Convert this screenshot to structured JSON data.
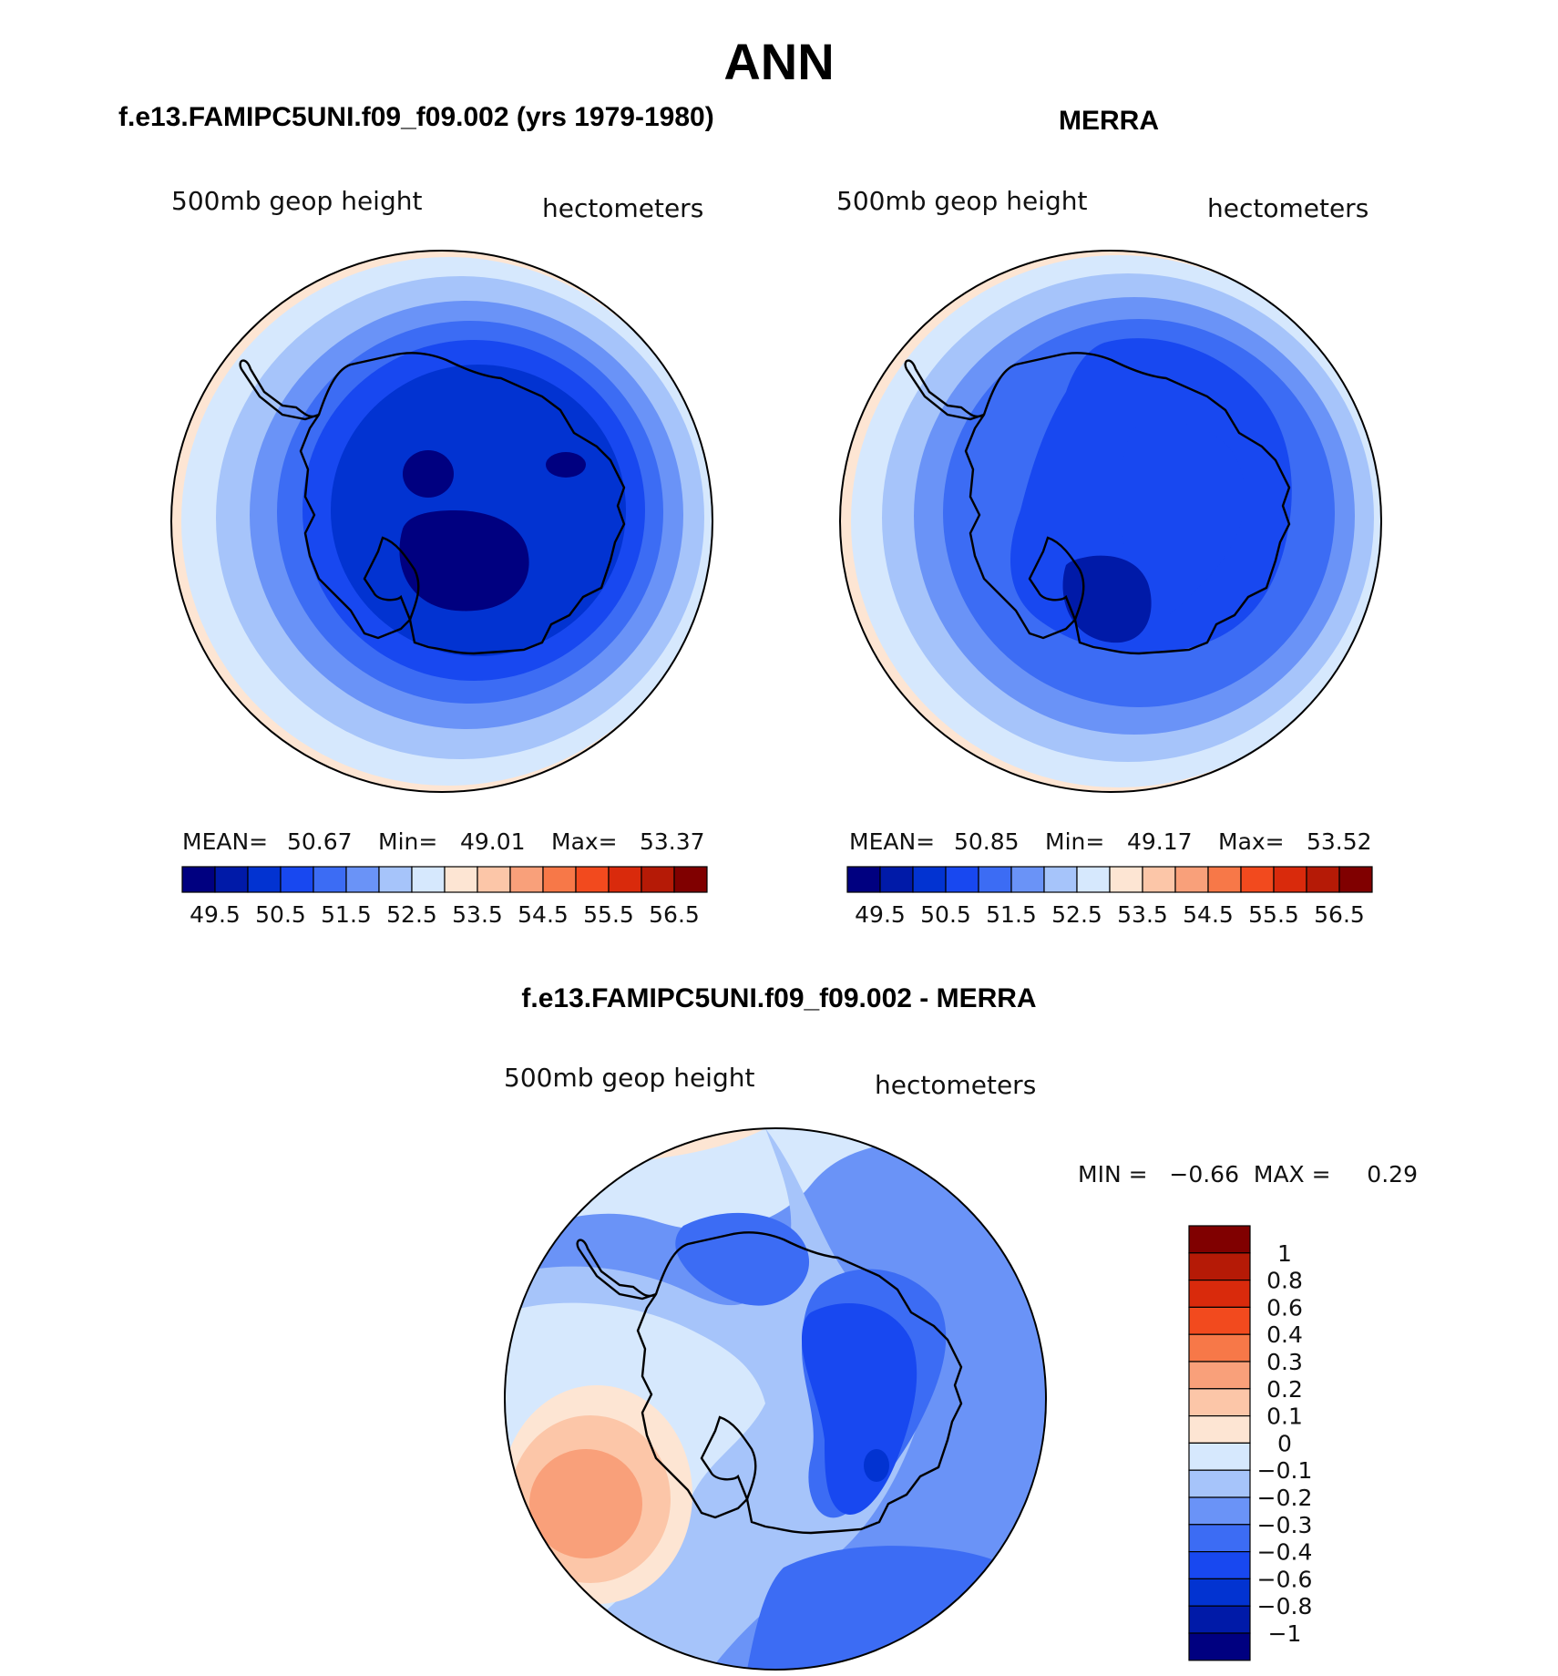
{
  "figure": {
    "title": "ANN",
    "panels": {
      "model": {
        "title": "f.e13.FAMIPC5UNI.f09_f09.002 (yrs 1979-1980)",
        "variable": "500mb geop height",
        "units": "hectometers",
        "stats": {
          "mean_label": "MEAN=",
          "mean": "50.67",
          "min_label": "Min=",
          "min": "49.01",
          "max_label": "Max=",
          "max": "53.37"
        }
      },
      "obs": {
        "title": "MERRA",
        "variable": "500mb geop height",
        "units": "hectometers",
        "stats": {
          "mean_label": "MEAN=",
          "mean": "50.85",
          "min_label": "Min=",
          "min": "49.17",
          "max_label": "Max=",
          "max": "53.52"
        }
      },
      "diff": {
        "title": "f.e13.FAMIPC5UNI.f09_f09.002 - MERRA",
        "variable": "500mb geop height",
        "units": "hectometers",
        "stats_line": "MIN =   −0.66  MAX =     0.29"
      }
    },
    "colorbars": {
      "absolute": {
        "colors": [
          "#000080",
          "#001aa8",
          "#0233d1",
          "#1848f0",
          "#3c6cf4",
          "#6a93f7",
          "#a6c4fa",
          "#d6e8fd",
          "#fde5d3",
          "#fcc6a8",
          "#f9a07a",
          "#f77848",
          "#f24a1e",
          "#d92a0c",
          "#b51a06",
          "#800000"
        ],
        "tick_labels": [
          "49.5",
          "50.5",
          "51.5",
          "52.5",
          "53.5",
          "54.5",
          "55.5",
          "56.5"
        ]
      },
      "difference": {
        "colors": [
          "#800000",
          "#b51a06",
          "#d92a0c",
          "#f24a1e",
          "#f77848",
          "#f9a07a",
          "#fcc6a8",
          "#fde5d3",
          "#d6e8fd",
          "#a6c4fa",
          "#6a93f7",
          "#3c6cf4",
          "#1848f0",
          "#0233d1",
          "#001aa8",
          "#000080"
        ],
        "tick_labels": [
          "1",
          "0.8",
          "0.6",
          "0.4",
          "0.3",
          "0.2",
          "0.1",
          "0",
          "−0.1",
          "−0.2",
          "−0.3",
          "−0.4",
          "−0.6",
          "−0.8",
          "−1"
        ]
      }
    },
    "map": {
      "projection": "south polar stereographic",
      "overlay": "coastlines (Antarctica)",
      "field_levels": {
        "model": [
          "#fde5d3",
          "#d6e8fd",
          "#a6c4fa",
          "#6a93f7",
          "#3c6cf4",
          "#1848f0",
          "#0233d1",
          "#001aa8",
          "#000080"
        ],
        "obs": [
          "#fde5d3",
          "#d6e8fd",
          "#a6c4fa",
          "#6a93f7",
          "#3c6cf4",
          "#1848f0",
          "#0233d1",
          "#001aa8"
        ]
      }
    }
  }
}
